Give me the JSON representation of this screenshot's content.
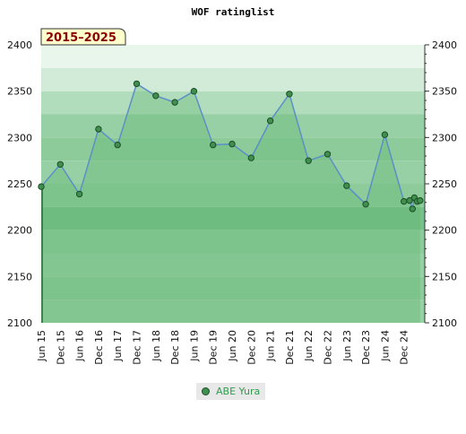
{
  "chart_data": {
    "type": "line",
    "title": "WOF ratinglist",
    "badge": "2015–2025",
    "ylim": [
      2100,
      2400
    ],
    "y_ticks": [
      2100,
      2150,
      2200,
      2250,
      2300,
      2350,
      2400
    ],
    "x_tick_labels": [
      "Jun 15",
      "Dec 15",
      "Jun 16",
      "Dec 16",
      "Jun 17",
      "Dec 17",
      "Jun 18",
      "Dec 18",
      "Jun 19",
      "Dec 19",
      "Jun 20",
      "Dec 20",
      "Jun 21",
      "Dec 21",
      "Jun 22",
      "Dec 22",
      "Jun 23",
      "Dec 23",
      "Jun 24",
      "Dec 24"
    ],
    "series": [
      {
        "name": "ABE Yura",
        "x": [
          0,
          1,
          2,
          3,
          4,
          5,
          6,
          7,
          8,
          9,
          10,
          11,
          12,
          13,
          14,
          15,
          16,
          17,
          18,
          19,
          19.3,
          19.45,
          19.55,
          19.7,
          19.85
        ],
        "values": [
          2247,
          2271,
          2239,
          2309,
          2292,
          2358,
          2345,
          2338,
          2350,
          2292,
          2293,
          2278,
          2318,
          2347,
          2275,
          2282,
          2248,
          2228,
          2303,
          2231,
          2232,
          2223,
          2235,
          2231,
          2232
        ]
      }
    ],
    "grid": true,
    "legend_position": "bottom-center"
  },
  "colors": {
    "line": "#5b8fc7",
    "fill": "#7cc48f",
    "marker": "#3f8f4f",
    "badge_bg": "#ffffcc"
  }
}
